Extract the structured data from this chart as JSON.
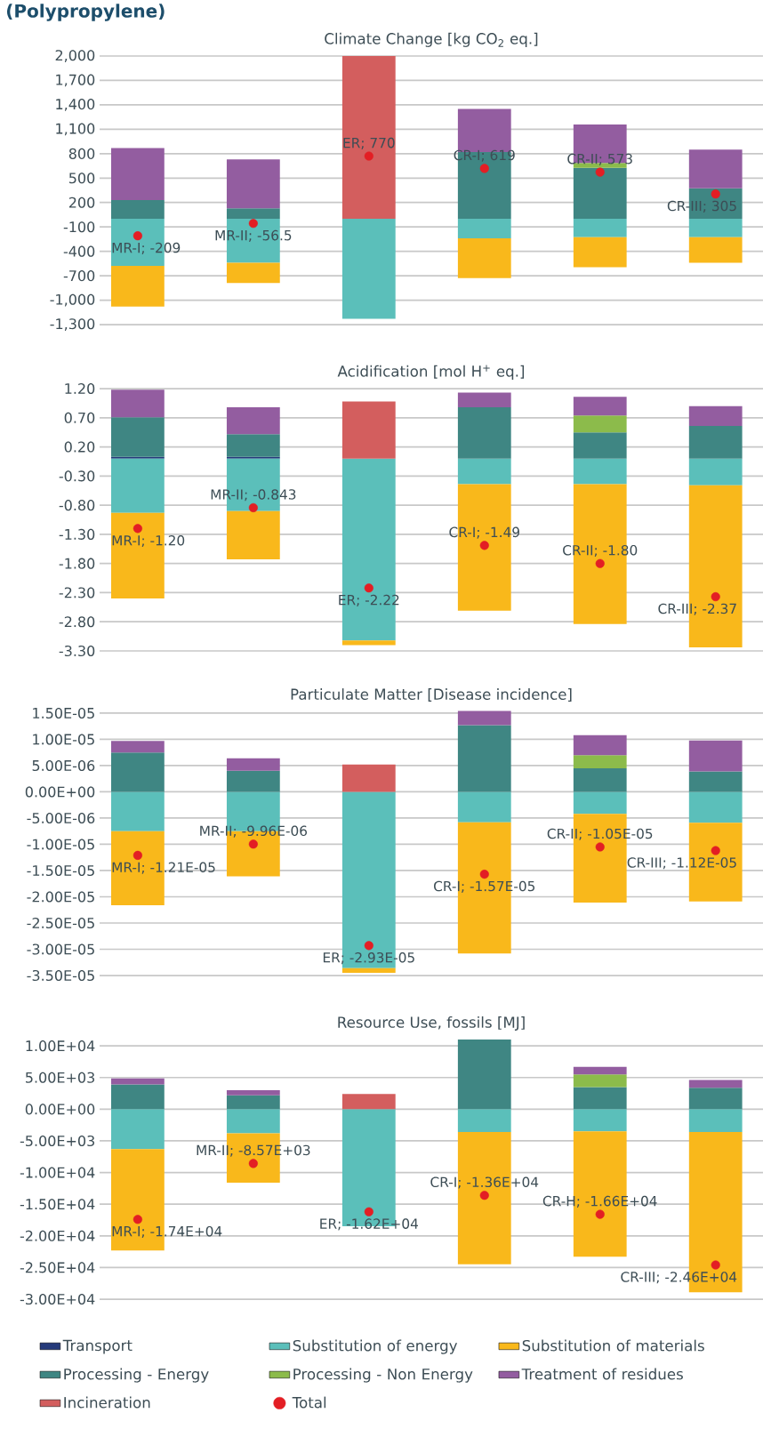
{
  "chart_data": [
    {
      "type": "bar",
      "stacked": true,
      "title": "(Polypropylene)",
      "subtitle": "Climate Change [kg CO$_{2}$ eq.]",
      "categories": [
        null,
        null,
        null,
        null,
        null,
        null
      ],
      "ylim": [
        -1300,
        2000
      ],
      "yticks": [
        {
          "value": 2000,
          "label": "2,000"
        },
        {
          "value": 1700,
          "label": "1,700"
        },
        {
          "value": 1400,
          "label": "1,400"
        },
        {
          "value": 1100,
          "label": "1,100"
        },
        800,
        500,
        200,
        -100,
        -400,
        -700,
        {
          "value": -1000,
          "label": "-1,000"
        },
        {
          "value": -1300,
          "label": "-1,300"
        }
      ],
      "grid": "y",
      "tick_labels": "y",
      "series": [
        {
          "color": "#253a7a",
          "values": [
            null,
            null,
            null,
            null,
            null,
            null
          ]
        },
        {
          "color": "#5bbfba",
          "values": [
            -580,
            -540,
            -1230,
            -240,
            -225,
            -225
          ]
        },
        {
          "color": "#f9b81b",
          "values": [
            -500,
            -250,
            null,
            -490,
            -370,
            -315
          ]
        },
        {
          "color": "#3f8683",
          "values": [
            230,
            130,
            null,
            820,
            625,
            375
          ]
        },
        {
          "color": "#8cbb4b",
          "values": [
            null,
            null,
            null,
            null,
            60,
            null
          ]
        },
        {
          "color": "#935da0",
          "values": [
            640,
            600,
            null,
            530,
            475,
            475
          ]
        },
        {
          "color": "#d35e5e",
          "values": [
            null,
            null,
            2000,
            null,
            null,
            null
          ]
        },
        {
          "type": "scatter",
          "marker": "circle",
          "color": "#e31e24",
          "values": [
            -209,
            -56.5,
            770,
            619,
            573,
            305
          ],
          "value_labels": [
            "MR-I; -209",
            "MR-II; -56.5",
            "ER; 770",
            "CR-I; 619",
            "CR-II; 573",
            "CR-III; 305"
          ]
        }
      ]
    },
    {
      "type": "bar",
      "stacked": true,
      "title": "Acidification [mol H$^{+}$ eq.]",
      "categories": [
        null,
        null,
        null,
        null,
        null,
        null
      ],
      "ylim": [
        -3.3,
        1.2
      ],
      "yticks": [
        {
          "value": 1.2,
          "label": "1.20"
        },
        {
          "value": 0.7,
          "label": "0.70"
        },
        {
          "value": 0.2,
          "label": "0.20"
        },
        {
          "value": -0.3,
          "label": "-0.30"
        },
        {
          "value": -0.8,
          "label": "-0.80"
        },
        {
          "value": -1.3,
          "label": "-1.30"
        },
        {
          "value": -1.8,
          "label": "-1.80"
        },
        {
          "value": -2.3,
          "label": "-2.30"
        },
        {
          "value": -2.8,
          "label": "-2.80"
        },
        {
          "value": -3.3,
          "label": "-3.30"
        }
      ],
      "grid": "y",
      "tick_labels": "y",
      "series": [
        {
          "color": "#253a7a",
          "values": [
            0.03,
            0.03,
            null,
            null,
            null,
            null
          ]
        },
        {
          "color": "#5bbfba",
          "values": [
            -0.93,
            -0.9,
            -3.12,
            -0.44,
            -0.44,
            -0.46
          ]
        },
        {
          "color": "#f9b81b",
          "values": [
            -1.47,
            -0.83,
            -0.08,
            -2.17,
            -2.4,
            -2.78
          ]
        },
        {
          "color": "#3f8683",
          "values": [
            0.68,
            0.39,
            null,
            0.88,
            0.45,
            0.56
          ]
        },
        {
          "color": "#8cbb4b",
          "values": [
            null,
            null,
            null,
            null,
            0.29,
            null
          ]
        },
        {
          "color": "#935da0",
          "values": [
            0.47,
            0.46,
            null,
            0.25,
            0.32,
            0.34
          ]
        },
        {
          "color": "#d35e5e",
          "values": [
            null,
            null,
            0.98,
            null,
            null,
            null
          ]
        },
        {
          "type": "scatter",
          "marker": "circle",
          "color": "#e31e24",
          "values": [
            -1.2,
            -0.843,
            -2.22,
            -1.49,
            -1.8,
            -2.37
          ],
          "value_labels": [
            "MR-I; -1.20",
            "MR-II; -0.843",
            "ER; -2.22",
            "CR-I; -1.49",
            "CR-II; -1.80",
            "CR-III; -2.37"
          ]
        }
      ]
    },
    {
      "type": "bar",
      "stacked": true,
      "title": "Particulate Matter [Disease incidence]",
      "categories": [
        null,
        null,
        null,
        null,
        null,
        null
      ],
      "ylim": [
        -3.5e-05,
        1.55e-05
      ],
      "yticks": [
        {
          "value": 1.5e-05,
          "label": "1.50E-05"
        },
        {
          "value": 1e-05,
          "label": "1.00E-05"
        },
        {
          "value": 5e-06,
          "label": "5.00E-06"
        },
        {
          "value": 0,
          "label": "0.00E+00"
        },
        {
          "value": -5e-06,
          "label": "-5.00E-06"
        },
        {
          "value": -1e-05,
          "label": "-1.00E-05"
        },
        {
          "value": -1.5e-05,
          "label": "-1.50E-05"
        },
        {
          "value": -2e-05,
          "label": "-2.00E-05"
        },
        {
          "value": -2.5e-05,
          "label": "-2.50E-05"
        },
        {
          "value": -3e-05,
          "label": "-3.00E-05"
        },
        {
          "value": -3.5e-05,
          "label": "-3.50E-05"
        }
      ],
      "grid": "y",
      "tick_labels": "y",
      "series": [
        {
          "color": "#253a7a",
          "values": [
            null,
            null,
            null,
            null,
            null,
            null
          ]
        },
        {
          "color": "#5bbfba",
          "values": [
            -7.5e-06,
            -7.5e-06,
            -3.36e-05,
            -5.8e-06,
            -4.2e-06,
            -5.9e-06
          ]
        },
        {
          "color": "#f9b81b",
          "values": [
            -1.41e-05,
            -8.6e-06,
            -9e-07,
            -2.5e-05,
            -1.69e-05,
            -1.5e-05
          ]
        },
        {
          "color": "#3f8683",
          "values": [
            7.5e-06,
            4e-06,
            null,
            1.27e-05,
            4.5e-06,
            3.9e-06
          ]
        },
        {
          "color": "#8cbb4b",
          "values": [
            null,
            null,
            null,
            null,
            2.5e-06,
            null
          ]
        },
        {
          "color": "#935da0",
          "values": [
            2.2e-06,
            2.4e-06,
            null,
            2.7e-06,
            3.8e-06,
            5.9e-06
          ]
        },
        {
          "color": "#d35e5e",
          "values": [
            null,
            null,
            5.2e-06,
            null,
            null,
            null
          ]
        },
        {
          "type": "scatter",
          "marker": "circle",
          "color": "#e31e24",
          "values": [
            -1.21e-05,
            -9.96e-06,
            -2.93e-05,
            -1.57e-05,
            -1.05e-05,
            -1.12e-05
          ],
          "value_labels": [
            "MR-I; -1.21E-05",
            "MR-II; -9.96E-06",
            "ER; -2.93E-05",
            "CR-I; -1.57E-05",
            "CR-II; -1.05E-05",
            "CR-III; -1.12E-05"
          ]
        }
      ]
    },
    {
      "type": "bar",
      "stacked": true,
      "title": "Resource Use, fossils [MJ]",
      "categories": [
        null,
        null,
        null,
        null,
        null,
        null
      ],
      "ylim": [
        -30000,
        11000
      ],
      "yticks": [
        {
          "value": 10000,
          "label": "1.00E+04"
        },
        {
          "value": 5000,
          "label": "5.00E+03"
        },
        {
          "value": 0,
          "label": "0.00E+00"
        },
        {
          "value": -5000,
          "label": "-5.00E+03"
        },
        {
          "value": -10000,
          "label": "-1.00E+04"
        },
        {
          "value": -15000,
          "label": "-1.50E+04"
        },
        {
          "value": -20000,
          "label": "-2.00E+04"
        },
        {
          "value": -25000,
          "label": "-2.50E+04"
        },
        {
          "value": -30000,
          "label": "-3.00E+04"
        }
      ],
      "grid": "y",
      "tick_labels": "y",
      "legend": "bottom",
      "series": [
        {
          "name": "Transport",
          "color": "#253a7a",
          "values": [
            null,
            null,
            null,
            null,
            null,
            null
          ]
        },
        {
          "name": "Substitution of energy",
          "color": "#5bbfba",
          "values": [
            -6300,
            -3800,
            -18500,
            -3600,
            -3500,
            -3600
          ]
        },
        {
          "name": "Substitution of materials",
          "color": "#f9b81b",
          "values": [
            -16000,
            -7800,
            null,
            -20900,
            -19800,
            -25300
          ]
        },
        {
          "name": "Processing - Energy",
          "color": "#3f8683",
          "values": [
            3900,
            2200,
            null,
            11000,
            3500,
            3400
          ]
        },
        {
          "name": "Processing - Non Energy",
          "color": "#8cbb4b",
          "values": [
            null,
            null,
            null,
            null,
            2000,
            null
          ]
        },
        {
          "name": "Treatment of residues",
          "color": "#935da0",
          "values": [
            950,
            800,
            null,
            null,
            1200,
            1200
          ]
        },
        {
          "name": "Incineration",
          "color": "#d35e5e",
          "values": [
            null,
            null,
            2400,
            null,
            null,
            null
          ]
        },
        {
          "name": "Total",
          "type": "scatter",
          "marker": "circle",
          "color": "#e31e24",
          "values": [
            -17400,
            -8570,
            -16200,
            -13600,
            -16600,
            -24600
          ],
          "value_labels": [
            "MR-I; -1.74E+04",
            "MR-II; -8.57E+03",
            "ER; -1.62E+04",
            "CR-I; -1.36E+04",
            "CR-H; -1.66E+04",
            "CR-III; -2.46E+04"
          ]
        }
      ]
    }
  ]
}
